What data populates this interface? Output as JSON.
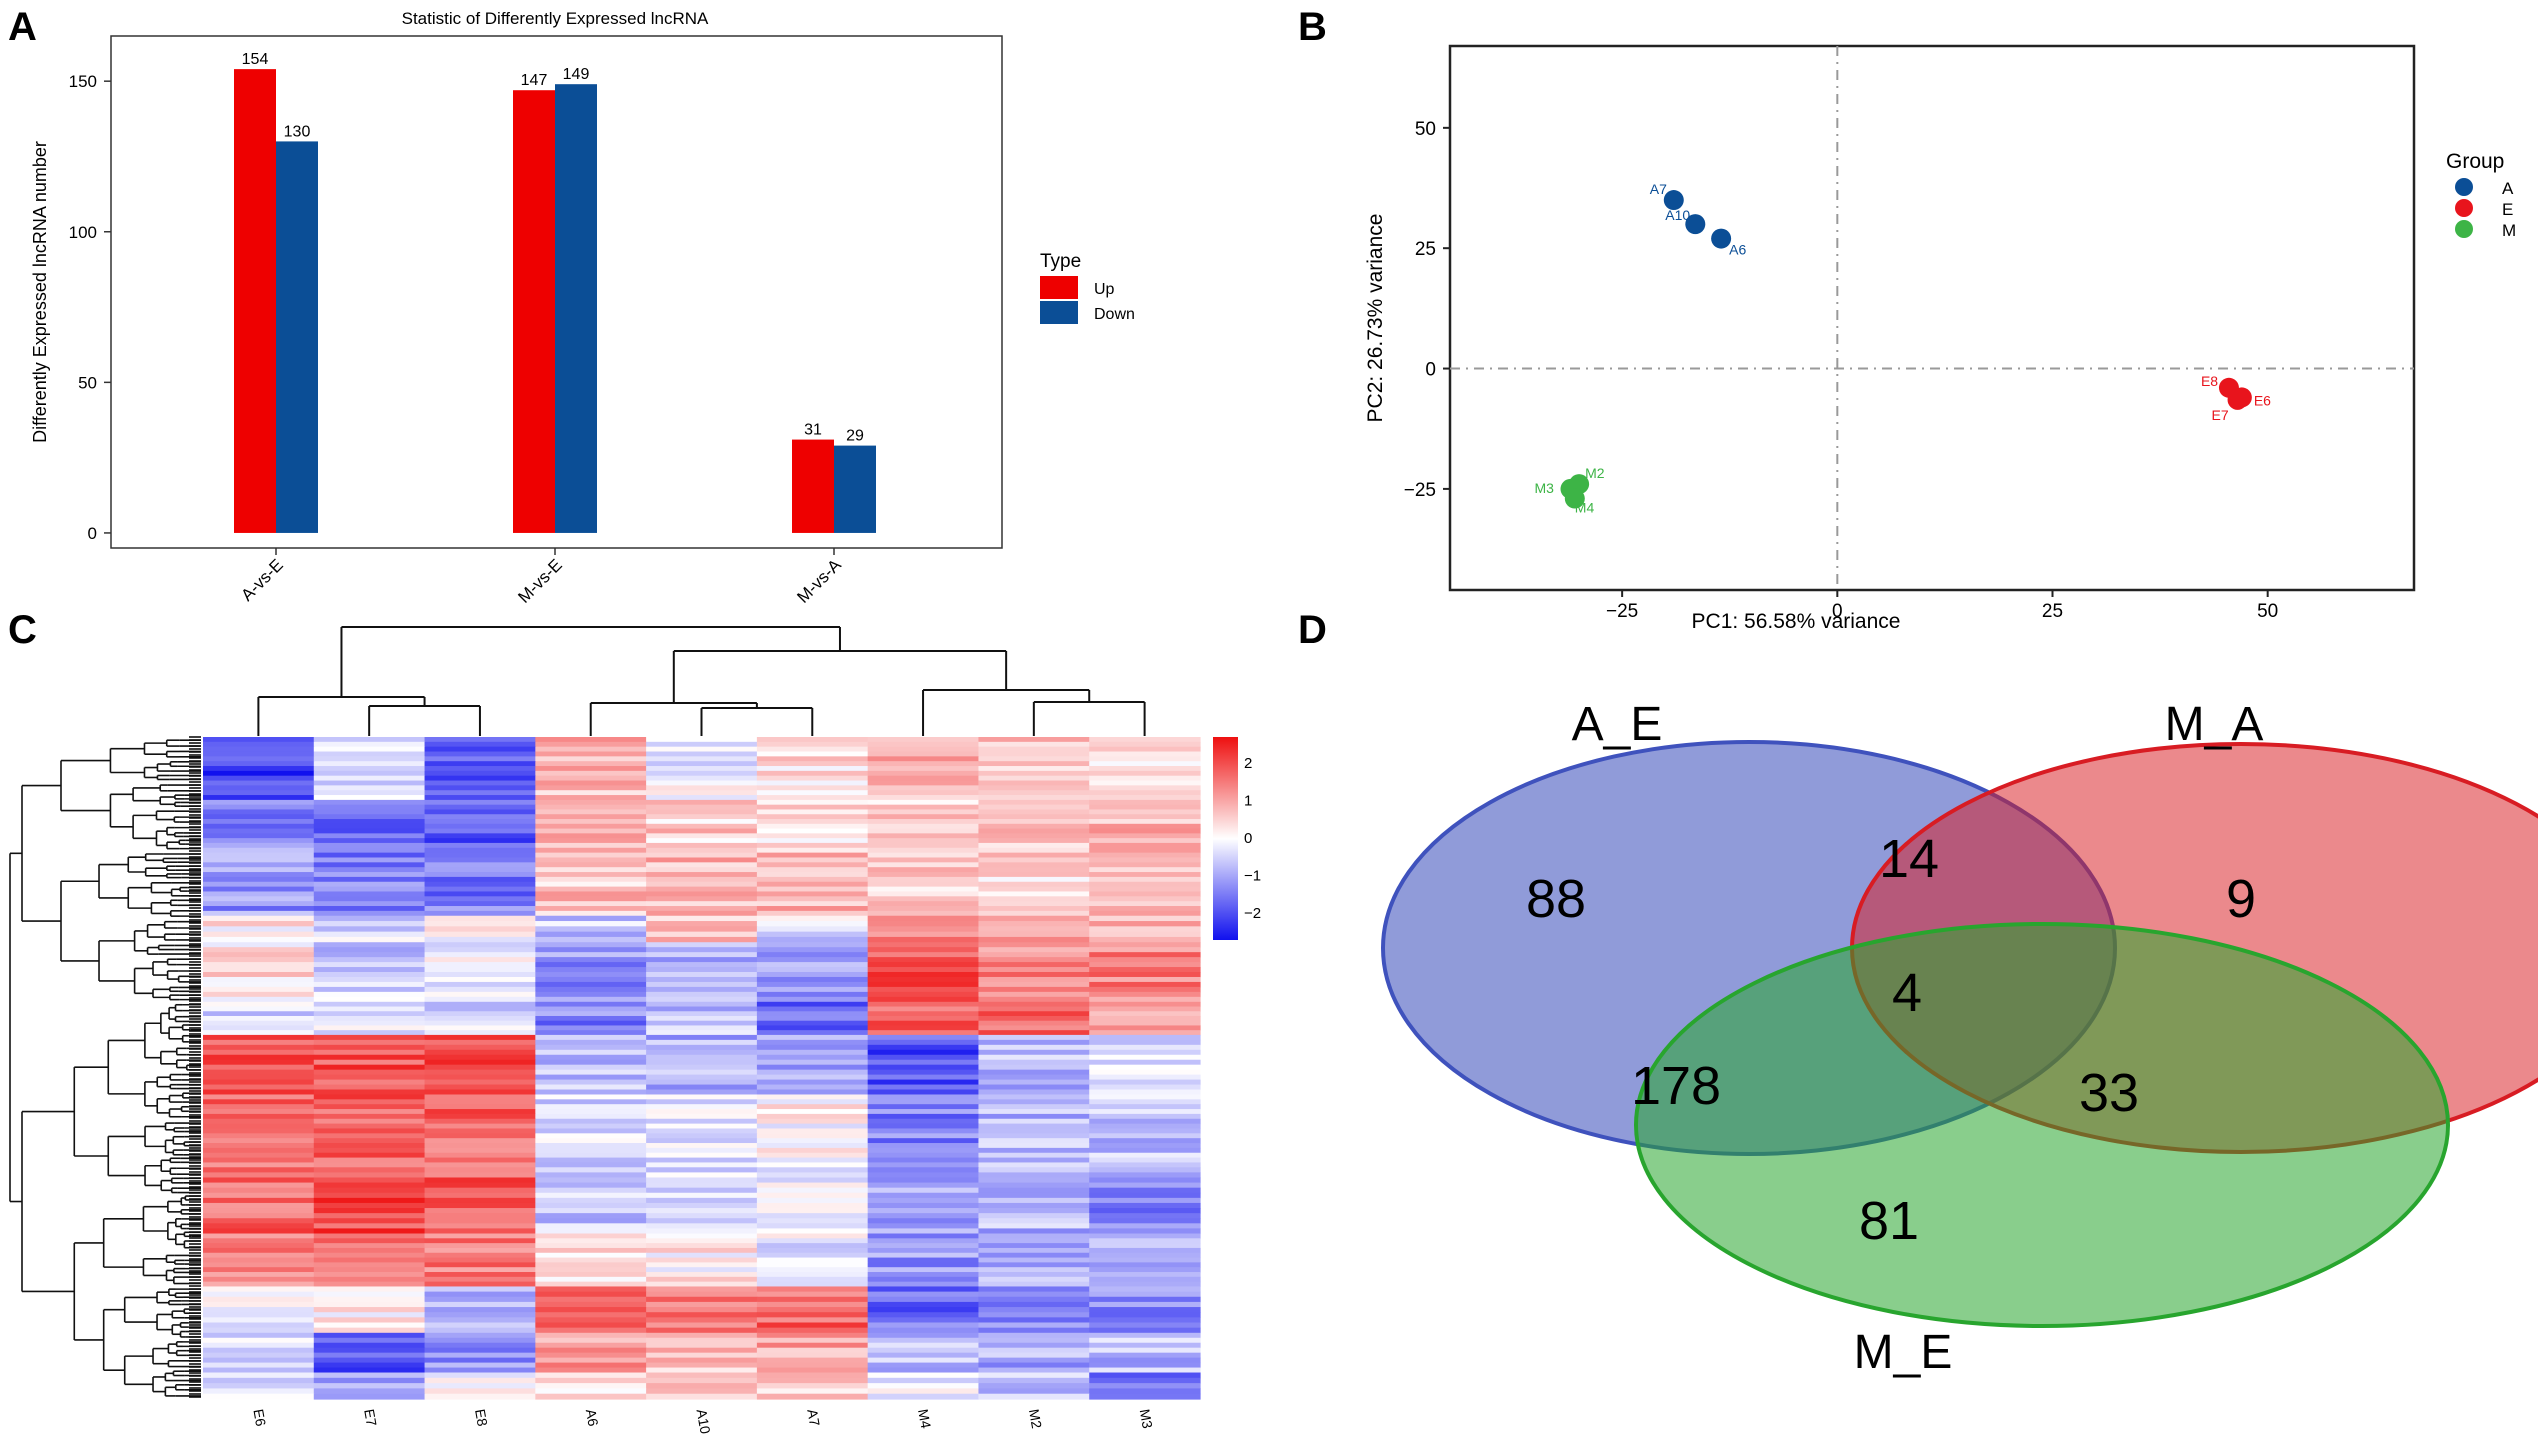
{
  "panels": {
    "a": "A",
    "b": "B",
    "c": "C",
    "d": "D"
  },
  "chart_data": [
    {
      "panel": "A",
      "type": "bar",
      "title": "Statistic of Differently Expressed lncRNA",
      "xlabel": "",
      "ylabel": "Differently Expressed lncRNA number",
      "categories": [
        "A-vs-E",
        "M-vs-E",
        "M-vs-A"
      ],
      "series": [
        {
          "name": "Up",
          "color": "#ee0000",
          "values": [
            154,
            147,
            31
          ]
        },
        {
          "name": "Down",
          "color": "#0b4e96",
          "values": [
            130,
            149,
            29
          ]
        }
      ],
      "yticks": [
        0,
        50,
        100,
        150
      ],
      "ylim": [
        -5,
        165
      ],
      "legend": {
        "title": "Type",
        "position": "right"
      }
    },
    {
      "panel": "B",
      "type": "scatter",
      "xlabel": "PC1: 56.58% variance",
      "ylabel": "PC2: 26.73% variance",
      "xticks": [
        -25,
        0,
        25,
        50
      ],
      "xtick_labels": [
        "−25",
        "0",
        "25",
        "50"
      ],
      "yticks": [
        50,
        25,
        0,
        -25
      ],
      "ytick_labels": [
        "50",
        "25",
        "0",
        "−25"
      ],
      "xlim": [
        -45,
        67
      ],
      "ylim": [
        -46,
        67
      ],
      "legend": {
        "title": "Group",
        "position": "right"
      },
      "groups": [
        {
          "name": "A",
          "color": "#0b4e96"
        },
        {
          "name": "E",
          "color": "#e8141c"
        },
        {
          "name": "M",
          "color": "#3db446"
        }
      ],
      "points": [
        {
          "label": "A7",
          "group": "A",
          "x": -19,
          "y": 35
        },
        {
          "label": "A10",
          "group": "A",
          "x": -16.5,
          "y": 30
        },
        {
          "label": "A6",
          "group": "A",
          "x": -13.5,
          "y": 27
        },
        {
          "label": "E8",
          "group": "E",
          "x": 45.5,
          "y": -4
        },
        {
          "label": "E6",
          "group": "E",
          "x": 47,
          "y": -6
        },
        {
          "label": "E7",
          "group": "E",
          "x": 46.5,
          "y": -6.5
        },
        {
          "label": "M2",
          "group": "M",
          "x": -30,
          "y": -24
        },
        {
          "label": "M3",
          "group": "M",
          "x": -31,
          "y": -25
        },
        {
          "label": "M4",
          "group": "M",
          "x": -30.5,
          "y": -27
        }
      ]
    },
    {
      "panel": "C",
      "type": "heatmap",
      "columns": [
        "E6",
        "E7",
        "E8",
        "A6",
        "A10",
        "A7",
        "M4",
        "M2",
        "M3"
      ],
      "colorbar": {
        "ticks": [
          "2",
          "1",
          "0",
          "−1",
          "−2"
        ],
        "range": [
          -2.5,
          2.5
        ],
        "low": "#1010ee",
        "mid": "#ffffff",
        "high": "#ee1010"
      },
      "blocks": [
        {
          "rows": 0.095,
          "values": [
            -2.0,
            -0.4,
            -1.6,
            0.7,
            -0.2,
            0.4,
            0.9,
            0.6,
            0.2
          ]
        },
        {
          "rows": 0.065,
          "values": [
            -1.3,
            -1.5,
            -1.8,
            0.8,
            0.5,
            0.3,
            0.6,
            0.9,
            0.7
          ]
        },
        {
          "rows": 0.11,
          "values": [
            -1.1,
            -1.3,
            -1.4,
            0.6,
            0.8,
            0.7,
            0.5,
            0.4,
            0.6
          ]
        },
        {
          "rows": 0.04,
          "values": [
            0.2,
            -0.3,
            0.1,
            -0.6,
            0.6,
            -0.4,
            1.4,
            1.1,
            0.9
          ]
        },
        {
          "rows": 0.09,
          "values": [
            0.3,
            -0.5,
            -0.2,
            -1.1,
            -0.8,
            -1.0,
            1.8,
            1.2,
            1.3
          ]
        },
        {
          "rows": 0.05,
          "values": [
            -0.4,
            -0.2,
            -0.3,
            -1.3,
            -0.6,
            -1.6,
            1.7,
            1.6,
            1.1
          ]
        },
        {
          "rows": 0.09,
          "values": [
            1.7,
            1.8,
            1.8,
            -0.7,
            -0.8,
            -1.0,
            -1.8,
            -0.8,
            -0.5
          ]
        },
        {
          "rows": 0.11,
          "values": [
            1.6,
            1.7,
            1.6,
            -0.4,
            -0.2,
            0.1,
            -1.3,
            -0.7,
            -0.6
          ]
        },
        {
          "rows": 0.1,
          "values": [
            1.6,
            1.9,
            1.7,
            -0.6,
            -0.4,
            -0.3,
            -0.9,
            -0.8,
            -1.2
          ]
        },
        {
          "rows": 0.08,
          "values": [
            1.2,
            1.3,
            1.4,
            0.4,
            0.2,
            -0.2,
            -1.1,
            -0.9,
            -1.0
          ]
        },
        {
          "rows": 0.07,
          "values": [
            -0.2,
            0.2,
            -0.6,
            1.4,
            1.3,
            1.6,
            -1.5,
            -1.3,
            -1.2
          ]
        },
        {
          "rows": 0.06,
          "values": [
            -0.3,
            -1.8,
            -1.2,
            1.0,
            0.6,
            0.9,
            -0.6,
            -0.9,
            -0.7
          ]
        },
        {
          "rows": 0.04,
          "values": [
            -0.5,
            -0.8,
            0.2,
            0.5,
            0.8,
            0.4,
            -0.2,
            -0.5,
            -1.6
          ]
        }
      ]
    },
    {
      "panel": "D",
      "type": "venn",
      "sets": [
        {
          "name": "A_E",
          "color": "#3f52bd"
        },
        {
          "name": "M_A",
          "color": "#d81c23"
        },
        {
          "name": "M_E",
          "color": "#28a52e"
        }
      ],
      "regions": [
        {
          "sets": [
            "A_E"
          ],
          "value": 88
        },
        {
          "sets": [
            "M_A"
          ],
          "value": 9
        },
        {
          "sets": [
            "M_E"
          ],
          "value": 81
        },
        {
          "sets": [
            "A_E",
            "M_A"
          ],
          "value": 14
        },
        {
          "sets": [
            "A_E",
            "M_E"
          ],
          "value": 178
        },
        {
          "sets": [
            "M_A",
            "M_E"
          ],
          "value": 33
        },
        {
          "sets": [
            "A_E",
            "M_A",
            "M_E"
          ],
          "value": 4
        }
      ]
    }
  ]
}
